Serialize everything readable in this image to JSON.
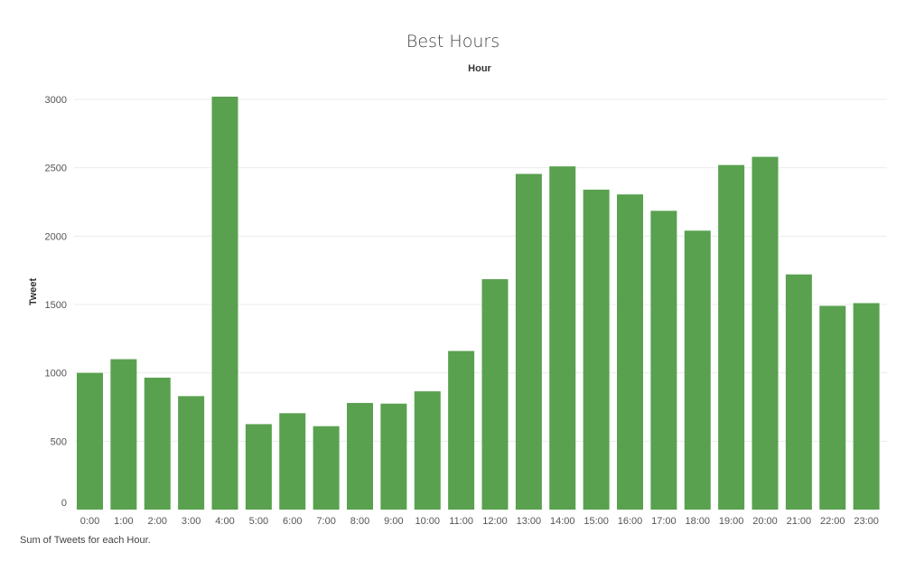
{
  "chart_data": {
    "type": "bar",
    "title": "Best Hours",
    "header_label": "Hour",
    "xlabel": "",
    "ylabel": "Tweet",
    "caption": "Sum of Tweets for each Hour.",
    "categories": [
      "0:00",
      "1:00",
      "2:00",
      "3:00",
      "4:00",
      "5:00",
      "6:00",
      "7:00",
      "8:00",
      "9:00",
      "10:00",
      "11:00",
      "12:00",
      "13:00",
      "14:00",
      "15:00",
      "16:00",
      "17:00",
      "18:00",
      "19:00",
      "20:00",
      "21:00",
      "22:00",
      "23:00"
    ],
    "values": [
      1000,
      1100,
      965,
      830,
      3020,
      625,
      705,
      610,
      780,
      775,
      865,
      1160,
      1685,
      2455,
      2510,
      2340,
      2305,
      2185,
      2040,
      2520,
      2580,
      1720,
      1490,
      1510
    ],
    "ylim": [
      0,
      3000
    ],
    "yticks": [
      0,
      500,
      1000,
      1500,
      2000,
      2500,
      3000
    ],
    "grid": true,
    "bar_color": "#59a14f",
    "gridline_color": "#ececec"
  }
}
